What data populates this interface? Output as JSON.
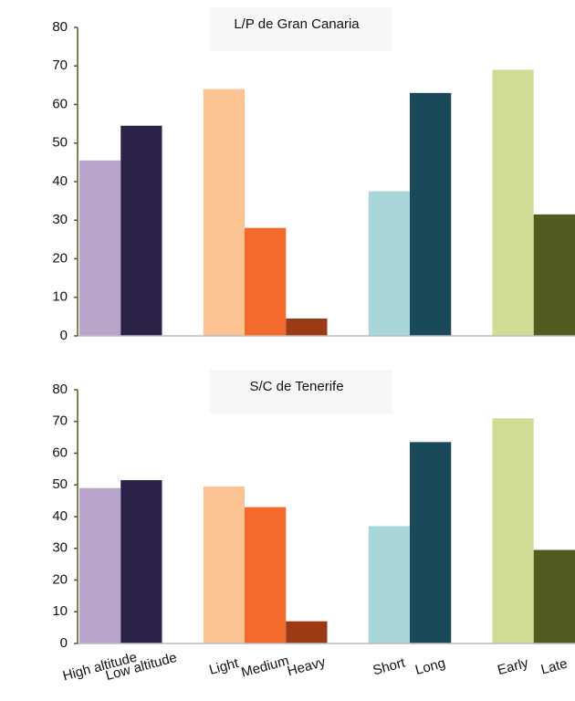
{
  "chart_data": [
    {
      "type": "bar",
      "title": "L/P de Gran Canaria",
      "values": [
        45.5,
        54.5,
        64,
        28,
        4.5,
        37.5,
        63,
        69,
        31.5
      ],
      "colors": [
        "#b9a5c9",
        "#2c2248",
        "#fcc493",
        "#f26b2d",
        "#9c3a16",
        "#a9d7d9",
        "#1a4a5a",
        "#d0dc96",
        "#515a1f"
      ],
      "ylim": [
        0,
        80
      ],
      "yticks": [
        0,
        10,
        20,
        30,
        40,
        50,
        60,
        70,
        80
      ]
    },
    {
      "type": "bar",
      "title": "S/C de Tenerife",
      "categories": [
        "High altitude",
        "Low altitude",
        "Light",
        "Medium",
        "Heavy",
        "Short",
        "Long",
        "Early",
        "Late"
      ],
      "values": [
        49,
        51.5,
        49.5,
        43,
        7,
        37,
        63.5,
        71,
        29.5
      ],
      "colors": [
        "#b9a5c9",
        "#2c2248",
        "#fcc493",
        "#f26b2d",
        "#9c3a16",
        "#a9d7d9",
        "#1a4a5a",
        "#d0dc96",
        "#515a1f"
      ],
      "ylim": [
        0,
        80
      ],
      "yticks": [
        0,
        10,
        20,
        30,
        40,
        50,
        60,
        70,
        80
      ]
    }
  ]
}
